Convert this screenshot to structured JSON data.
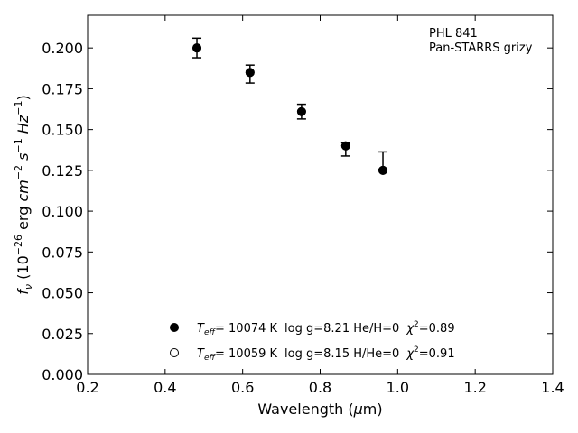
{
  "chart_data": {
    "type": "scatter",
    "title": "",
    "xlabel": "Wavelength (μm)",
    "ylabel": "f_ν (10^-26 erg cm^-2 s^-1 Hz^-1)",
    "xlim": [
      0.2,
      1.4
    ],
    "ylim": [
      0.0,
      0.22
    ],
    "xticks": [
      "0.2",
      "0.4",
      "0.6",
      "0.8",
      "1.0",
      "1.2",
      "1.4"
    ],
    "yticks": [
      "0.000",
      "0.025",
      "0.050",
      "0.075",
      "0.100",
      "0.125",
      "0.150",
      "0.175",
      "0.200"
    ],
    "grid": false,
    "annotation": [
      "PHL 841",
      "Pan-STARRS grizy"
    ],
    "series": [
      {
        "name": "T_eff = 10074 K  log g=8.21  He/H=0  χ²=0.89",
        "marker": "filled-circle",
        "color": "#000000",
        "x": [
          0.482,
          0.619,
          0.752,
          0.866,
          0.962
        ],
        "y": [
          0.2,
          0.185,
          0.161,
          0.14,
          0.125
        ]
      },
      {
        "name": "T_eff = 10059 K  log g=8.15  H/He=0  χ²=0.91",
        "marker": "open-circle",
        "color": "#000000",
        "x": [
          0.482,
          0.619,
          0.752,
          0.866,
          0.962
        ],
        "y": [
          0.2,
          0.185,
          0.161,
          0.14,
          0.125
        ]
      }
    ],
    "observed": {
      "x": [
        0.482,
        0.619,
        0.752,
        0.866,
        0.962
      ],
      "y": [
        0.2,
        0.184,
        0.161,
        0.138,
        0.131
      ],
      "yerr": [
        0.006,
        0.0055,
        0.0045,
        0.0042,
        0.0053
      ]
    },
    "legend": {
      "placement": "lower-center",
      "entries": [
        {
          "marker": "filled-circle",
          "teff_prefix": "T",
          "teff_sub": "eff",
          "teff_value": "= 10074 K",
          "params": "log g=8.21  He/H=0",
          "chi": "χ",
          "chi_sup": "2",
          "chi_value": "=0.89"
        },
        {
          "marker": "open-circle",
          "teff_prefix": "T",
          "teff_sub": "eff",
          "teff_value": "= 10059 K",
          "params": "log g=8.15  H/He=0",
          "chi": "χ",
          "chi_sup": "2",
          "chi_value": "=0.91"
        }
      ]
    }
  }
}
